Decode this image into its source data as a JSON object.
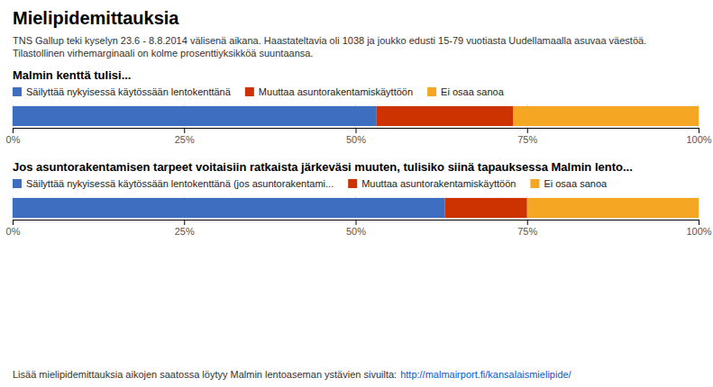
{
  "title": "Mielipidemittauksia",
  "subtitle": "TNS Gallup teki kyselyn 23.6 - 8.8.2014 välisenä aikana. Haastateltavia oli 1038 ja joukko edusti 15-79 vuotiasta Uudellamaalla asuvaa väestöä. Tilastollinen virhemarginaali on kolme prosenttiyksikköä suuntaansa.",
  "annotations": [
    "Lisää mielipidemittauksia aikojen saatossa löytyy Malmin lentoaseman ystävien sivuilta: ",
    "http://malmairport.fi/kansalaismielipide/"
  ],
  "chart_data": [
    {
      "type": "bar",
      "orientation": "horizontal",
      "stacked": true,
      "title": "Malmin kenttä tulisi...",
      "categories": [
        null
      ],
      "series": [
        {
          "name": "Säilyttää nykyisessä käytössään lentokenttänä",
          "color": "#3d6ebf",
          "values": [
            53
          ]
        },
        {
          "name": "Muuttaa asuntorakentamiskäyttöön",
          "color": "#cc3300",
          "values": [
            20
          ]
        },
        {
          "name": "Ei osaa sanoa",
          "color": "#f5a623",
          "values": [
            27
          ]
        }
      ],
      "xlim": [
        0,
        100
      ],
      "xticks": [
        {
          "value": 0,
          "label": "0%"
        },
        {
          "value": 25,
          "label": "25%"
        },
        {
          "value": 50,
          "label": "50%"
        },
        {
          "value": 75,
          "label": "75%"
        },
        {
          "value": 100,
          "label": "100%"
        }
      ],
      "grid": true,
      "legend": "top",
      "tick_labels": "x"
    },
    {
      "type": "bar",
      "orientation": "horizontal",
      "stacked": true,
      "title": "Jos asuntorakentamisen tarpeet voitaisiin ratkaista järkeväsi muuten, tulisiko siinä tapauksessa Malmin lento...",
      "categories": [
        null
      ],
      "series": [
        {
          "name": "Säilyttää nykyisessä käytössään lentokenttänä (jos asuntorakentami...",
          "color": "#3d6ebf",
          "values": [
            63
          ]
        },
        {
          "name": "Muuttaa asuntorakentamiskäyttöön",
          "color": "#cc3300",
          "values": [
            12
          ]
        },
        {
          "name": "Ei osaa sanoa",
          "color": "#f5a623",
          "values": [
            25
          ]
        }
      ],
      "xlim": [
        0,
        100
      ],
      "xticks": [
        {
          "value": 0,
          "label": "0%"
        },
        {
          "value": 25,
          "label": "25%"
        },
        {
          "value": 50,
          "label": "50%"
        },
        {
          "value": 75,
          "label": "75%"
        },
        {
          "value": 100,
          "label": "100%"
        }
      ],
      "grid": true,
      "legend": "top",
      "tick_labels": "x"
    }
  ]
}
